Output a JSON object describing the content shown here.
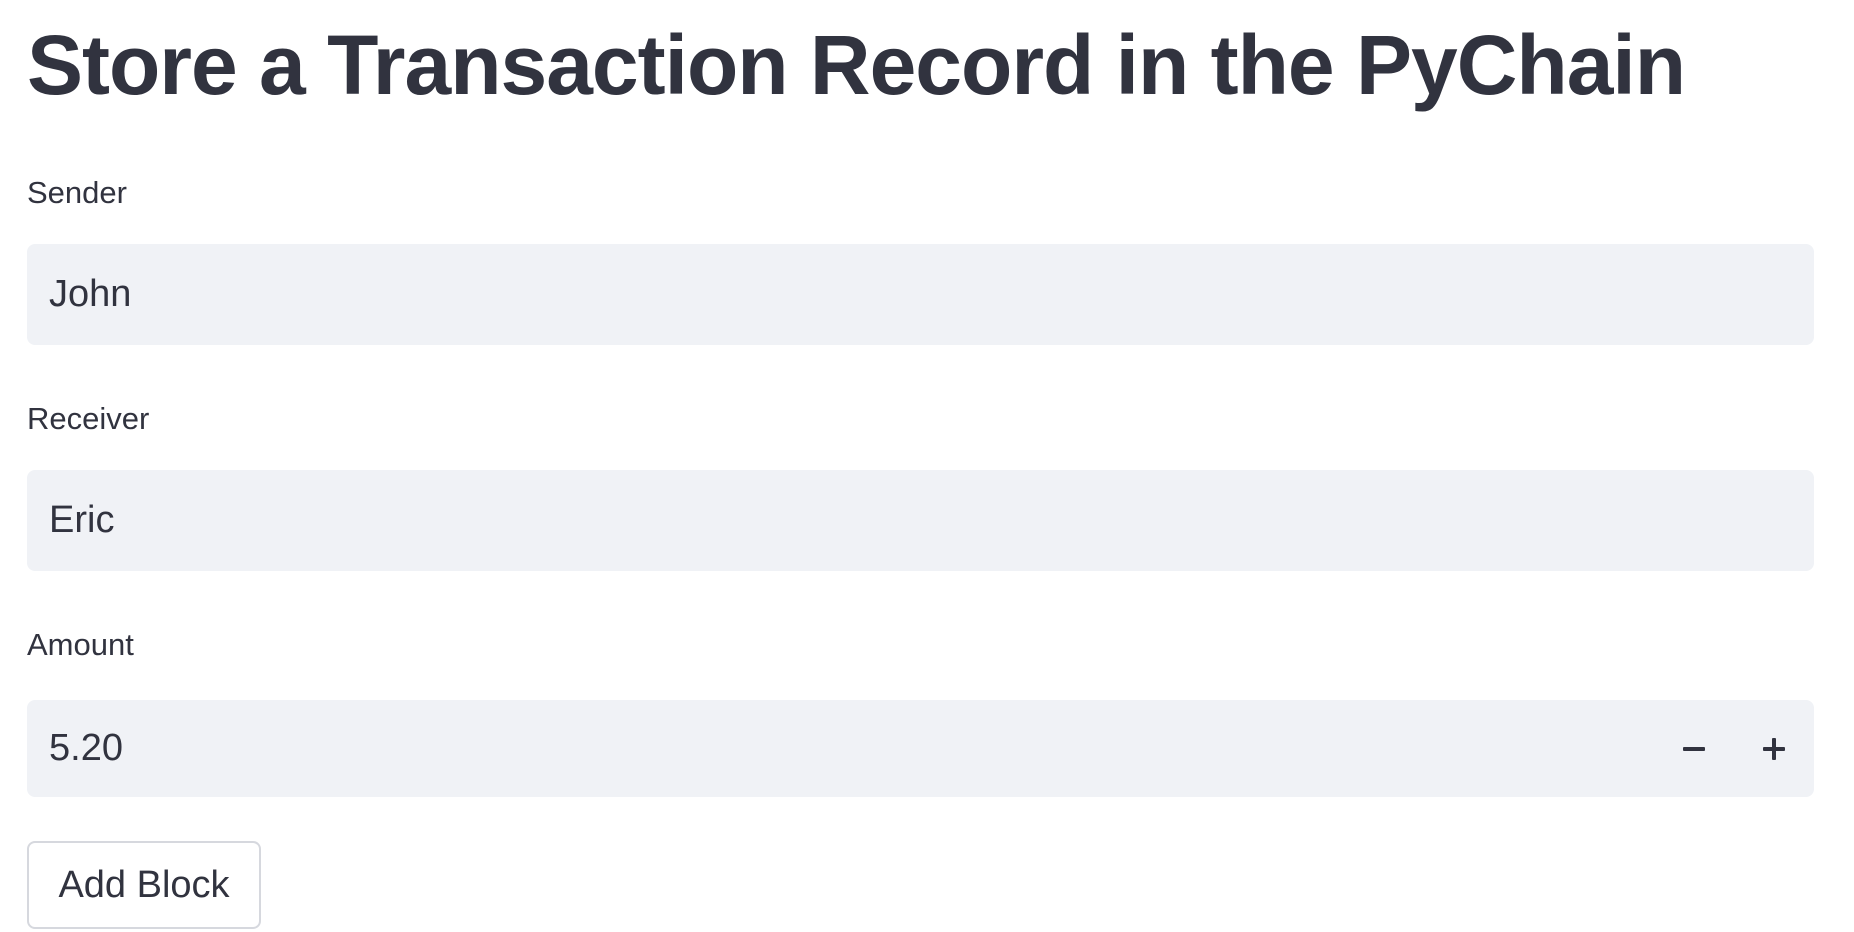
{
  "page": {
    "title": "Store a Transaction Record in the PyChain"
  },
  "form": {
    "sender": {
      "label": "Sender",
      "value": "John"
    },
    "receiver": {
      "label": "Receiver",
      "value": "Eric"
    },
    "amount": {
      "label": "Amount",
      "value": "5.20",
      "decrement_icon": "minus-icon",
      "increment_icon": "plus-icon"
    },
    "submit_label": "Add Block"
  },
  "colors": {
    "text": "#31333f",
    "input_background": "#f0f2f6",
    "button_border": "#d6d8de",
    "page_background": "#ffffff"
  }
}
